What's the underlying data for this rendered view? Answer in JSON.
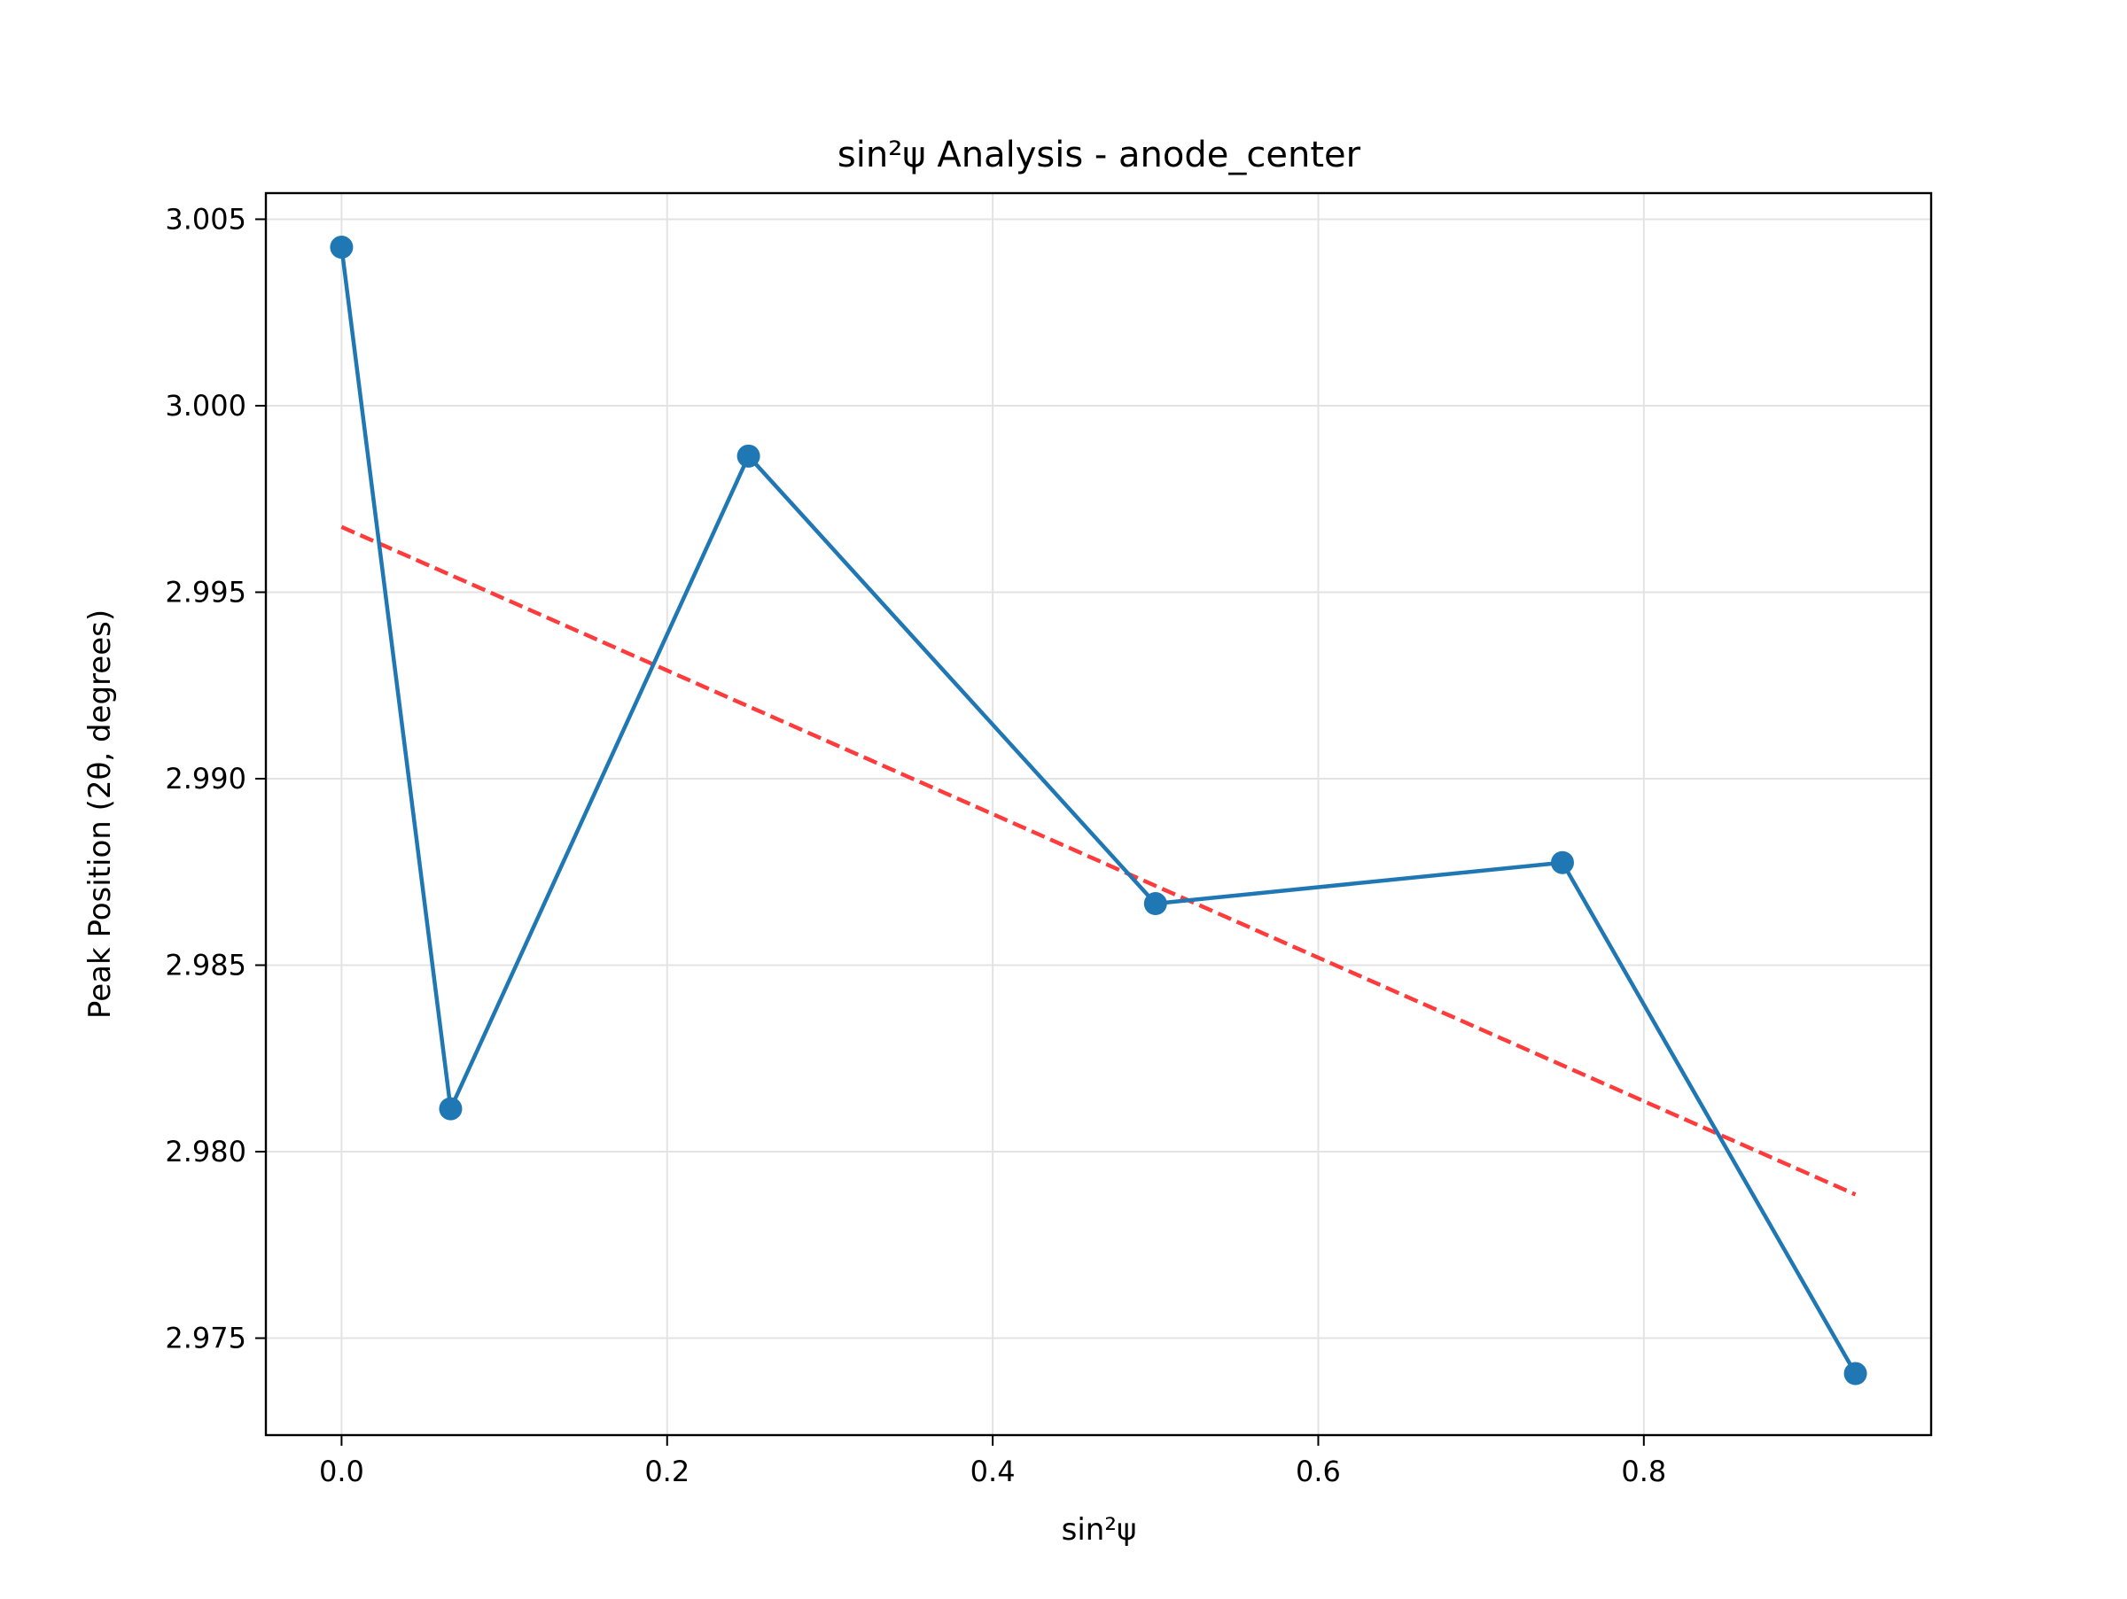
{
  "chart_data": {
    "type": "line",
    "title": "sin²ψ Analysis - anode_center",
    "xlabel": "sin²ψ",
    "ylabel": "Peak Position (2θ, degrees)",
    "xlim": [
      -0.0465,
      0.9765
    ],
    "ylim": [
      2.9724,
      3.0057
    ],
    "x_ticks": [
      "0.0",
      "0.2",
      "0.4",
      "0.6",
      "0.8"
    ],
    "x_tick_values": [
      0.0,
      0.2,
      0.4,
      0.6,
      0.8
    ],
    "y_ticks": [
      "2.975",
      "2.980",
      "2.985",
      "2.990",
      "2.995",
      "3.000",
      "3.005"
    ],
    "y_tick_values": [
      2.975,
      2.98,
      2.985,
      2.99,
      2.995,
      3.0,
      3.005
    ],
    "grid": true,
    "series": [
      {
        "style": "line-with-markers",
        "color": "#1f77b4",
        "x": [
          0.0,
          0.067,
          0.25,
          0.5,
          0.75,
          0.93
        ],
        "y": [
          3.00425,
          2.98115,
          2.99865,
          2.98665,
          2.98775,
          2.97405
        ]
      },
      {
        "style": "dashed-fit",
        "color": "#ff2a2a",
        "x": [
          0.0,
          0.93
        ],
        "y": [
          2.99675,
          2.97885
        ]
      }
    ]
  }
}
